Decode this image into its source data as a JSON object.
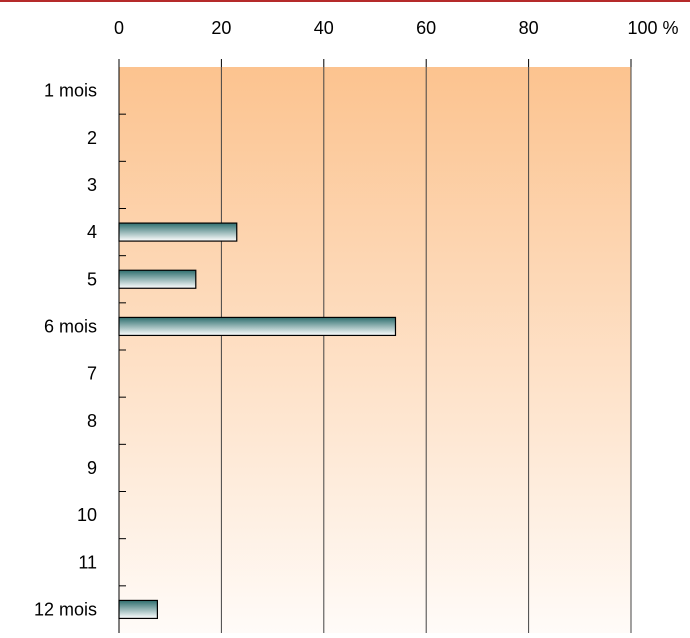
{
  "chart_data": {
    "type": "bar",
    "orientation": "horizontal",
    "categories": [
      "1 mois",
      "2",
      "3",
      "4",
      "5",
      "6 mois",
      "7",
      "8",
      "9",
      "10",
      "11",
      "12 mois"
    ],
    "values": [
      0,
      0,
      0,
      23,
      15,
      54,
      0,
      0,
      0,
      0,
      0,
      7.5
    ],
    "x_ticks": [
      "0",
      "20",
      "40",
      "60",
      "80",
      "100 %"
    ],
    "xlim": [
      0,
      100
    ],
    "grid": true,
    "legend": "none",
    "colors": {
      "plot_bg_top": "#FCC38F",
      "plot_bg_bottom": "#FFFBF8",
      "bar_dark": "#2E6E6E",
      "bar_light": "#FFFFFF",
      "border_accent": "#B52A2A"
    }
  }
}
